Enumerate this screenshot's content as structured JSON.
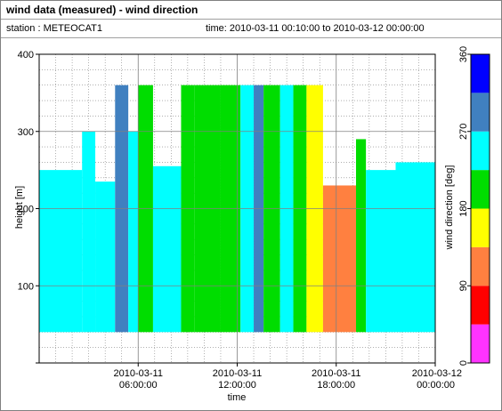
{
  "header": {
    "title": "wind data (measured) - wind direction",
    "station": "station : METEOCAT1",
    "time_range": "time: 2010-03-11 00:10:00 to 2010-03-12 00:00:00"
  },
  "colors": {
    "plot_background": "#ffffff",
    "grid": "#808080"
  },
  "chart_data": {
    "type": "heatmap",
    "xlabel": "time",
    "ylabel": "height [m]",
    "x_unit": "hours since 2010-03-11 00:00:00",
    "xlim": [
      0,
      24
    ],
    "ylim": [
      0,
      400
    ],
    "x_ticks": [
      {
        "value": 6,
        "line1": "2010-03-11",
        "line2": "06:00:00"
      },
      {
        "value": 12,
        "line1": "2010-03-11",
        "line2": "12:00:00"
      },
      {
        "value": 18,
        "line1": "2010-03-11",
        "line2": "18:00:00"
      },
      {
        "value": 24,
        "line1": "2010-03-12",
        "line2": "00:00:00"
      }
    ],
    "y_ticks": [
      100,
      200,
      300,
      400
    ],
    "grid": true,
    "height_range_m": [
      40,
      360
    ],
    "colorbar": {
      "label": "wind direction [deg]",
      "range": [
        0,
        360
      ],
      "ticks": [
        0,
        90,
        180,
        270,
        360
      ],
      "bins": [
        {
          "from": 0,
          "to": 45,
          "color": "#ff33ff"
        },
        {
          "from": 45,
          "to": 90,
          "color": "#ff0000"
        },
        {
          "from": 90,
          "to": 135,
          "color": "#ff8040"
        },
        {
          "from": 135,
          "to": 180,
          "color": "#ffff00"
        },
        {
          "from": 180,
          "to": 225,
          "color": "#00dd00"
        },
        {
          "from": 225,
          "to": 270,
          "color": "#00ffff"
        },
        {
          "from": 270,
          "to": 315,
          "color": "#4080c0"
        },
        {
          "from": 315,
          "to": 360,
          "color": "#0000ff"
        }
      ]
    },
    "segments": [
      {
        "t0": 0.0,
        "t1": 2.6,
        "dir": 250,
        "top": 250
      },
      {
        "t0": 2.6,
        "t1": 3.4,
        "dir": 250,
        "top": 300
      },
      {
        "t0": 3.4,
        "t1": 4.6,
        "dir": 255,
        "top": 235
      },
      {
        "t0": 4.6,
        "t1": 5.4,
        "dir": 285,
        "top": 360
      },
      {
        "t0": 5.4,
        "t1": 6.0,
        "dir": 255,
        "top": 300
      },
      {
        "t0": 6.0,
        "t1": 6.9,
        "dir": 205,
        "top": 360
      },
      {
        "t0": 6.9,
        "t1": 8.6,
        "dir": 245,
        "top": 255
      },
      {
        "t0": 8.6,
        "t1": 9.4,
        "dir": 205,
        "top": 360
      },
      {
        "t0": 9.4,
        "t1": 11.0,
        "dir": 200,
        "top": 360
      },
      {
        "t0": 11.0,
        "t1": 12.2,
        "dir": 205,
        "top": 360
      },
      {
        "t0": 12.2,
        "t1": 13.0,
        "dir": 260,
        "top": 360
      },
      {
        "t0": 13.0,
        "t1": 13.6,
        "dir": 290,
        "top": 360
      },
      {
        "t0": 13.6,
        "t1": 14.6,
        "dir": 205,
        "top": 360
      },
      {
        "t0": 14.6,
        "t1": 15.4,
        "dir": 260,
        "top": 360
      },
      {
        "t0": 15.4,
        "t1": 16.2,
        "dir": 200,
        "top": 360
      },
      {
        "t0": 16.2,
        "t1": 17.2,
        "dir": 175,
        "top": 360
      },
      {
        "t0": 17.2,
        "t1": 19.2,
        "dir": 115,
        "top": 230
      },
      {
        "t0": 19.2,
        "t1": 19.8,
        "dir": 205,
        "top": 290
      },
      {
        "t0": 19.8,
        "t1": 21.6,
        "dir": 250,
        "top": 250
      },
      {
        "t0": 21.6,
        "t1": 24.0,
        "dir": 250,
        "top": 260
      }
    ]
  }
}
